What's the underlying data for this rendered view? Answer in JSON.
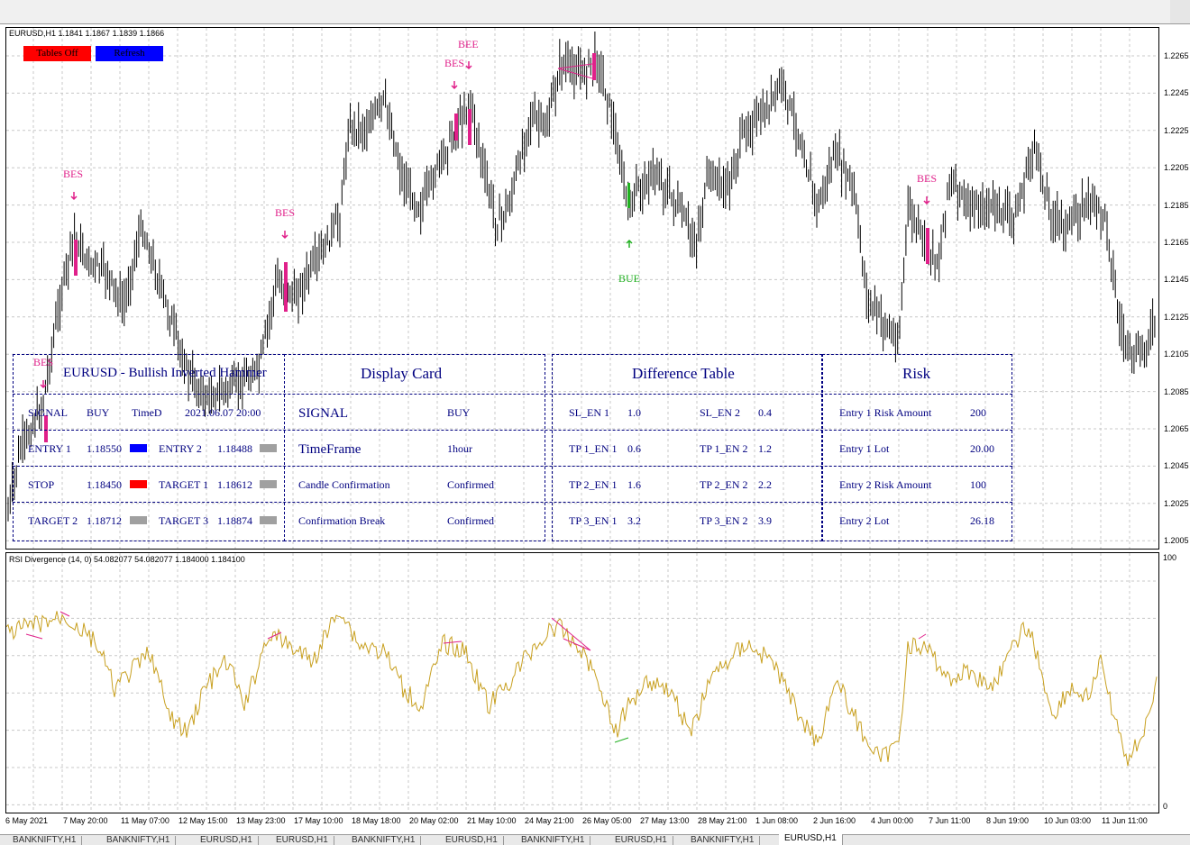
{
  "header": {
    "main_info": "EURUSD,H1  1.1841  1.1867  1.1839  1.1866",
    "sub_info": "RSI Divergence (14, 0) 54.082077 54.082077 1.184000 1.184100"
  },
  "buttons": {
    "tables_off": "Tables Off",
    "refresh": "Refresh"
  },
  "price_axis": [
    "1.2265",
    "1.2245",
    "1.2225",
    "1.2205",
    "1.2185",
    "1.2165",
    "1.2145",
    "1.2125",
    "1.2105",
    "1.2085",
    "1.2065",
    "1.2045",
    "1.2025",
    "1.2005"
  ],
  "rsi_axis": {
    "top": "100",
    "bottom": "0"
  },
  "time_axis": [
    "6 May 2021",
    "7 May 20:00",
    "11 May 07:00",
    "12 May 15:00",
    "13 May 23:00",
    "17 May 10:00",
    "18 May 18:00",
    "20 May 02:00",
    "21 May 10:00",
    "24 May 21:00",
    "26 May 05:00",
    "27 May 13:00",
    "28 May 21:00",
    "1 Jun 08:00",
    "2 Jun 16:00",
    "4 Jun 00:00",
    "7 Jun 11:00",
    "8 Jun 19:00",
    "10 Jun 03:00",
    "11 Jun 11:00"
  ],
  "signals": [
    {
      "text": "BES",
      "color": "#e0208a"
    },
    {
      "text": "BES",
      "color": "#e0208a"
    },
    {
      "text": "BES",
      "color": "#e0208a"
    },
    {
      "text": "BES",
      "color": "#e0208a"
    },
    {
      "text": "BEE",
      "color": "#e0208a"
    },
    {
      "text": "BES",
      "color": "#e0208a"
    },
    {
      "text": "BUE",
      "color": "#22b022"
    }
  ],
  "tables": {
    "signal": {
      "title": "EURUSD - Bullish Inverted Hammer",
      "signal_label": "SIGNAL",
      "signal_value": "BUY",
      "time_label": "TimeD",
      "time_value": "2021.06.07 20:00",
      "entry1_label": "ENTRY 1",
      "entry1_value": "1.18550",
      "entry2_label": "ENTRY 2",
      "entry2_value": "1.18488",
      "stop_label": "STOP",
      "stop_value": "1.18450",
      "target1_label": "TARGET 1",
      "target1_value": "1.18612",
      "target2_label": "TARGET 2",
      "target2_value": "1.18712",
      "target3_label": "TARGET 3",
      "target3_value": "1.18874"
    },
    "display": {
      "title": "Display Card",
      "rows": [
        {
          "label": "SIGNAL",
          "value": "BUY"
        },
        {
          "label": "TimeFrame",
          "value": "1hour"
        },
        {
          "label": "Candle Confirmation",
          "value": "Confirmed"
        },
        {
          "label": "Confirmation Break",
          "value": "Confirmed"
        }
      ]
    },
    "difference": {
      "title": "Difference Table",
      "rows": [
        {
          "l1": "SL_EN 1",
          "v1": "1.0",
          "l2": "SL_EN 2",
          "v2": "0.4"
        },
        {
          "l1": "TP 1_EN 1",
          "v1": "0.6",
          "l2": "TP 1_EN 2",
          "v2": "1.2"
        },
        {
          "l1": "TP 2_EN 1",
          "v1": "1.6",
          "l2": "TP 2_EN 2",
          "v2": "2.2"
        },
        {
          "l1": "TP 3_EN 1",
          "v1": "3.2",
          "l2": "TP 3_EN 2",
          "v2": "3.9"
        }
      ]
    },
    "risk": {
      "title": "Risk",
      "rows": [
        {
          "label": "Entry 1 Risk Amount",
          "value": "200"
        },
        {
          "label": "Entry 1 Lot",
          "value": "20.00"
        },
        {
          "label": "Entry 2 Risk Amount",
          "value": "100"
        },
        {
          "label": "Entry 2 Lot",
          "value": "26.18"
        }
      ]
    }
  },
  "tabs": [
    "BANKNIFTY,H1",
    "BANKNIFTY,H1",
    "EURUSD,H1",
    "EURUSD,H1",
    "BANKNIFTY,H1",
    "EURUSD,H1",
    "BANKNIFTY,H1",
    "EURUSD,H1",
    "BANKNIFTY,H1",
    "EURUSD,H1"
  ],
  "colors": {
    "candle": "#000000",
    "rsi": "#c8a020",
    "signal_bar": "#e0208a",
    "bullish": "#22b022",
    "table": "#000080",
    "tables_off_bg": "#ff0000",
    "refresh_bg": "#0000ff",
    "swatch_blue": "#0000ff",
    "swatch_red": "#ff0000",
    "swatch_gray": "#a0a0a0"
  }
}
